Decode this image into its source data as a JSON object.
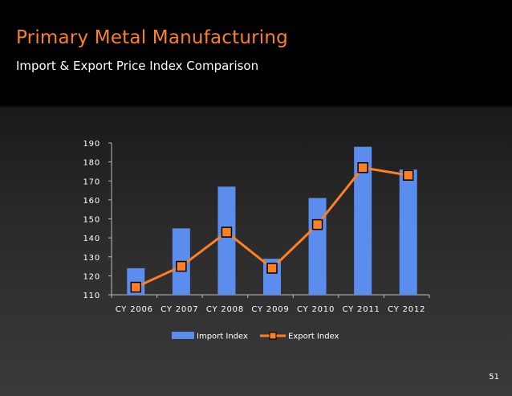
{
  "slide": {
    "title": "Primary Metal Manufacturing",
    "subtitle": "Import & Export Price Index Comparison",
    "page_number": "51"
  },
  "colors": {
    "title": "#ff7f24",
    "bar": "#5b8def",
    "line": "#ff7f24",
    "marker_fill": "#ff7f24",
    "marker_stroke": "#000000",
    "axis": "#bbbbbb"
  },
  "chart_data": {
    "type": "bar",
    "title": "",
    "xlabel": "",
    "ylabel": "",
    "ylim": [
      110,
      190
    ],
    "yticks": [
      110,
      120,
      130,
      140,
      150,
      160,
      170,
      180,
      190
    ],
    "grid": false,
    "legend_position": "bottom",
    "categories": [
      "CY 2006",
      "CY 2007",
      "CY 2008",
      "CY 2009",
      "CY 2010",
      "CY 2011",
      "CY 2012"
    ],
    "series": [
      {
        "name": "Import Index",
        "type": "bar",
        "values": [
          124,
          145,
          167,
          129,
          161,
          188,
          176
        ]
      },
      {
        "name": "Export Index",
        "type": "line",
        "values": [
          114,
          125,
          143,
          124,
          147,
          177,
          173
        ]
      }
    ]
  }
}
